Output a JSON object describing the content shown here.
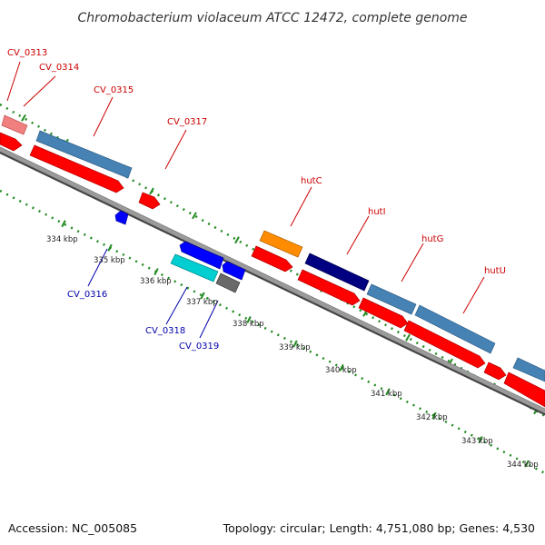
{
  "title": "Chromobacterium violaceum ATCC 12472, complete genome",
  "footer": {
    "accession": "Accession: NC_005085",
    "summary": "Topology: circular; Length: 4,751,080 bp; Genes: 4,530"
  },
  "colors": {
    "outer_label": "#cc0000",
    "inner_label": "#0000aa",
    "cds_forward": "#4682b4",
    "cds_reverse": "#ff0000",
    "rrna": "#f08080",
    "backbone": "#808080",
    "tick": "#228b22"
  },
  "genes_forward": [
    {
      "name": "CV_0313"
    },
    {
      "name": "CV_0314"
    },
    {
      "name": "CV_0315"
    },
    {
      "name": "CV_0317"
    },
    {
      "name": "hutC"
    },
    {
      "name": "hutI"
    },
    {
      "name": "hutG"
    },
    {
      "name": "hutU"
    }
  ],
  "genes_reverse": [
    {
      "name": "CV_0316"
    },
    {
      "name": "CV_0318"
    },
    {
      "name": "CV_0319"
    }
  ],
  "kbp_ticks": [
    "334 kbp",
    "335 kbp",
    "336 kbp",
    "337 kbp",
    "338 kbp",
    "339 kbp",
    "340 kbp",
    "341 kbp",
    "342 kbp",
    "343 kbp",
    "344 kbp"
  ]
}
